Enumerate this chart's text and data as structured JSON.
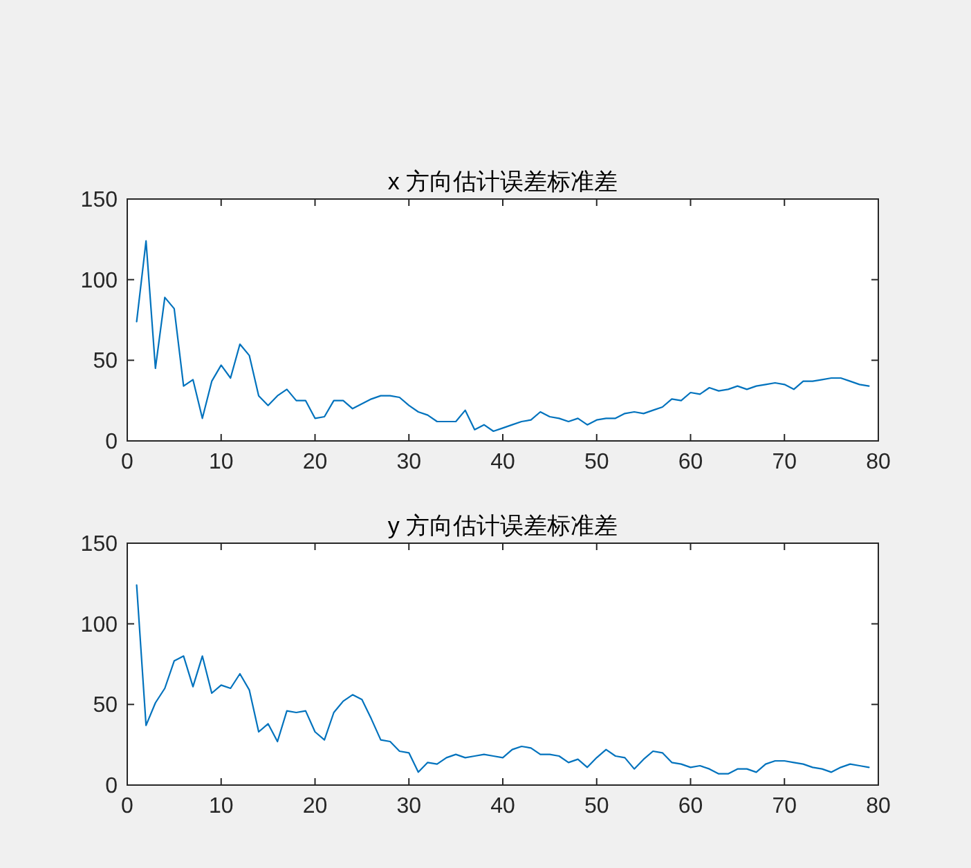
{
  "chart_data": [
    {
      "type": "line",
      "title": "x 方向估计误差标准差",
      "x": [
        1,
        2,
        3,
        4,
        5,
        6,
        7,
        8,
        9,
        10,
        11,
        12,
        13,
        14,
        15,
        16,
        17,
        18,
        19,
        20,
        21,
        22,
        23,
        24,
        25,
        26,
        27,
        28,
        29,
        30,
        31,
        32,
        33,
        34,
        35,
        36,
        37,
        38,
        39,
        40,
        41,
        42,
        43,
        44,
        45,
        46,
        47,
        48,
        49,
        50,
        51,
        52,
        53,
        54,
        55,
        56,
        57,
        58,
        59,
        60,
        61,
        62,
        63,
        64,
        65,
        66,
        67,
        68,
        69,
        70,
        71,
        72,
        73,
        74,
        75,
        76,
        77,
        78,
        79
      ],
      "series": [
        {
          "color": "#0072bd",
          "values": [
            74,
            124,
            45,
            89,
            82,
            34,
            38,
            14,
            37,
            47,
            39,
            60,
            53,
            28,
            22,
            28,
            32,
            25,
            25,
            14,
            15,
            25,
            25,
            20,
            23,
            26,
            28,
            28,
            27,
            22,
            18,
            16,
            12,
            12,
            12,
            19,
            7,
            10,
            6,
            8,
            10,
            12,
            13,
            18,
            15,
            14,
            12,
            14,
            10,
            13,
            14,
            14,
            17,
            18,
            17,
            19,
            21,
            26,
            25,
            30,
            29,
            33,
            31,
            32,
            34,
            32,
            34,
            35,
            36,
            35,
            32,
            37,
            37,
            38,
            39,
            39,
            37,
            35,
            34
          ]
        }
      ],
      "xlim": [
        0,
        80
      ],
      "xticks": [
        0,
        10,
        20,
        30,
        40,
        50,
        60,
        70,
        80
      ],
      "ylim": [
        0,
        150
      ],
      "yticks": [
        0,
        50,
        100,
        150
      ]
    },
    {
      "type": "line",
      "title": "y 方向估计误差标准差",
      "x": [
        1,
        2,
        3,
        4,
        5,
        6,
        7,
        8,
        9,
        10,
        11,
        12,
        13,
        14,
        15,
        16,
        17,
        18,
        19,
        20,
        21,
        22,
        23,
        24,
        25,
        26,
        27,
        28,
        29,
        30,
        31,
        32,
        33,
        34,
        35,
        36,
        37,
        38,
        39,
        40,
        41,
        42,
        43,
        44,
        45,
        46,
        47,
        48,
        49,
        50,
        51,
        52,
        53,
        54,
        55,
        56,
        57,
        58,
        59,
        60,
        61,
        62,
        63,
        64,
        65,
        66,
        67,
        68,
        69,
        70,
        71,
        72,
        73,
        74,
        75,
        76,
        77,
        78,
        79
      ],
      "series": [
        {
          "color": "#0072bd",
          "values": [
            124,
            37,
            51,
            60,
            77,
            80,
            61,
            80,
            57,
            62,
            60,
            69,
            59,
            33,
            38,
            27,
            46,
            45,
            46,
            33,
            28,
            45,
            52,
            56,
            53,
            41,
            28,
            27,
            21,
            20,
            8,
            14,
            13,
            17,
            19,
            17,
            18,
            19,
            18,
            17,
            22,
            24,
            23,
            19,
            19,
            18,
            14,
            16,
            11,
            17,
            22,
            18,
            17,
            10,
            16,
            21,
            20,
            14,
            13,
            11,
            12,
            10,
            7,
            7,
            10,
            10,
            8,
            13,
            15,
            15,
            14,
            13,
            11,
            10,
            8,
            11,
            13,
            12,
            11
          ]
        }
      ],
      "xlim": [
        0,
        80
      ],
      "xticks": [
        0,
        10,
        20,
        30,
        40,
        50,
        60,
        70,
        80
      ],
      "ylim": [
        0,
        150
      ],
      "yticks": [
        0,
        50,
        100,
        150
      ]
    }
  ]
}
